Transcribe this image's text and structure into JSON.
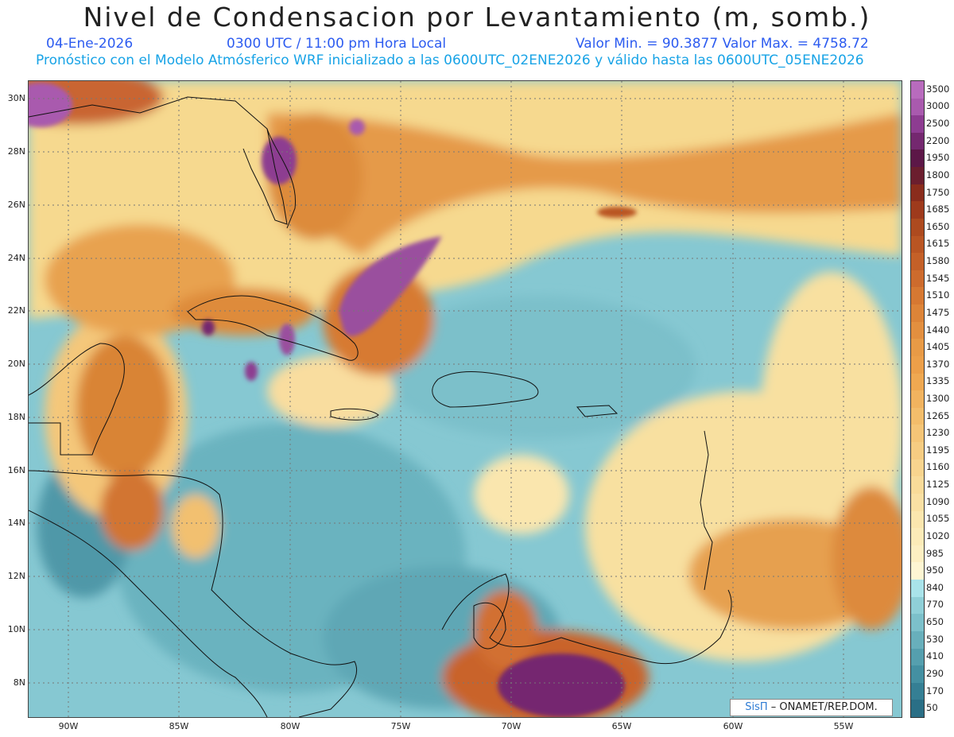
{
  "header": {
    "title": "Nivel de Condensacion por Levantamiento (m, somb.)",
    "date": "04-Ene-2026",
    "time": "0300 UTC / 11:00 pm Hora Local",
    "stats": "Valor Min. = 90.3877  Valor Max. = 4758.72",
    "model_line": "Pronóstico con el Modelo Atmósferico WRF inicializado a las 0600UTC_02ENE2026 y válido hasta las  0600UTC_05ENE2026"
  },
  "map": {
    "lat_ticks": [
      "30N",
      "28N",
      "26N",
      "24N",
      "22N",
      "20N",
      "18N",
      "16N",
      "14N",
      "12N",
      "10N",
      "8N"
    ],
    "lon_ticks": [
      "90W",
      "85W",
      "80W",
      "75W",
      "70W",
      "65W",
      "60W",
      "55W"
    ]
  },
  "colorbar": {
    "labels": [
      "3500",
      "3000",
      "2500",
      "2200",
      "1950",
      "1800",
      "1750",
      "1685",
      "1650",
      "1615",
      "1580",
      "1545",
      "1510",
      "1475",
      "1440",
      "1405",
      "1370",
      "1335",
      "1300",
      "1265",
      "1230",
      "1195",
      "1160",
      "1125",
      "1090",
      "1055",
      "1020",
      "985",
      "950",
      "840",
      "770",
      "650",
      "530",
      "410",
      "290",
      "170",
      "50"
    ],
    "colors": [
      "#b86bbd",
      "#a95aae",
      "#8d3c91",
      "#74286f",
      "#5c1747",
      "#6b1e2e",
      "#8a2c1c",
      "#9e3a1c",
      "#ad4a1f",
      "#b95523",
      "#c46028",
      "#cd6b2d",
      "#d67832",
      "#dd8438",
      "#e38f3f",
      "#e89a46",
      "#ec9f49",
      "#efa851",
      "#f1b35f",
      "#f3bd6b",
      "#f5c577",
      "#f6cc82",
      "#f8d48e",
      "#f9db99",
      "#fae0a3",
      "#fbe6ae",
      "#fcebb8",
      "#fdefc2",
      "#fef6d3",
      "#a9e3ea",
      "#8fcfd7",
      "#7cc0ca",
      "#68afbb",
      "#559fae",
      "#4490a2",
      "#357f94",
      "#2a6f86"
    ]
  },
  "credit": {
    "logo": "SisΠ",
    "text": "– ONAMET/REP.DOM."
  }
}
